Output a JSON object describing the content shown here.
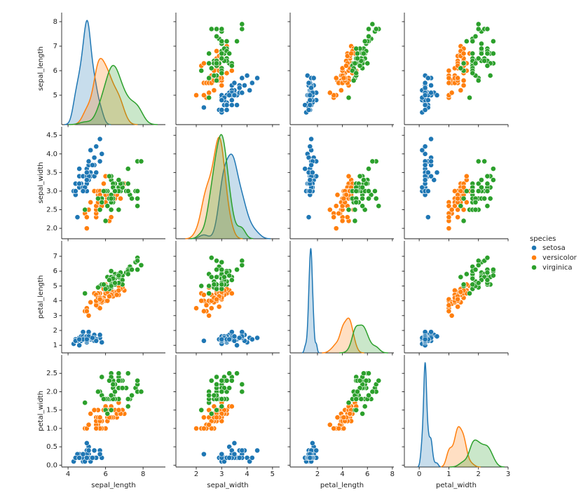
{
  "chart_data": {
    "type": "pairplot",
    "diag": "kde",
    "variables": [
      "sepal_length",
      "sepal_width",
      "petal_length",
      "petal_width"
    ],
    "axes": [
      {
        "xlim": [
          3.66,
          9.19
        ],
        "ylim": [
          3.8,
          8.37
        ],
        "xticks": [
          4,
          6,
          8
        ],
        "yticks": [
          5,
          6,
          7,
          8
        ]
      },
      {
        "xlim": [
          1.2,
          5.28
        ],
        "ylim": [
          1.72,
          4.73
        ],
        "xticks": [
          2,
          3,
          4,
          5
        ],
        "yticks": [
          {
            "value": 2,
            "label": "2.0"
          },
          {
            "value": 2.5,
            "label": "2.5"
          },
          {
            "value": 3,
            "label": "3.0"
          },
          {
            "value": 3.5,
            "label": "3.5"
          },
          {
            "value": 4,
            "label": "4.0"
          },
          {
            "value": 4.5,
            "label": "4.5"
          }
        ]
      },
      {
        "xlim": [
          -0.19,
          8.12
        ],
        "ylim": [
          0.49,
          8.04
        ],
        "xticks": [
          2,
          4,
          6,
          8
        ],
        "yticks": [
          1,
          2,
          3,
          4,
          5,
          6,
          7
        ]
      },
      {
        "xlim": [
          -0.5,
          3.0
        ],
        "ylim": [
          -0.05,
          3.0
        ],
        "xticks": [
          0,
          1,
          2,
          3
        ],
        "yticks": [
          {
            "value": 0,
            "label": "0.0"
          },
          {
            "value": 0.5,
            "label": "0.5"
          },
          {
            "value": 1,
            "label": "1.0"
          },
          {
            "value": 1.5,
            "label": "1.5"
          },
          {
            "value": 2,
            "label": "2.0"
          },
          {
            "value": 2.5,
            "label": "2.5"
          }
        ]
      }
    ],
    "legend_title": "species",
    "legend": "right",
    "series": [
      {
        "name": "setosa",
        "color": "#1f77b4",
        "values": [
          [
            5.1,
            4.9,
            4.7,
            4.6,
            5.0,
            5.4,
            4.6,
            5.0,
            4.4,
            4.9,
            5.4,
            4.8,
            4.8,
            4.3,
            5.8,
            5.7,
            5.4,
            5.1,
            5.7,
            5.1,
            5.4,
            5.1,
            4.6,
            5.1,
            4.8,
            5.0,
            5.0,
            5.2,
            5.2,
            4.7,
            4.8,
            5.4,
            5.2,
            5.5,
            4.9,
            5.0,
            5.5,
            4.9,
            4.4,
            5.1,
            5.0,
            4.5,
            4.4,
            5.0,
            5.1,
            4.8,
            5.1,
            4.6,
            5.3,
            5.0
          ],
          [
            3.5,
            3.0,
            3.2,
            3.1,
            3.6,
            3.9,
            3.4,
            3.4,
            2.9,
            3.1,
            3.7,
            3.4,
            3.0,
            3.0,
            4.0,
            4.4,
            3.9,
            3.5,
            3.8,
            3.8,
            3.4,
            3.7,
            3.6,
            3.3,
            3.4,
            3.0,
            3.4,
            3.5,
            3.4,
            3.2,
            3.1,
            3.4,
            4.1,
            4.2,
            3.1,
            3.2,
            3.5,
            3.1,
            3.0,
            3.4,
            3.5,
            2.3,
            3.2,
            3.5,
            3.8,
            3.0,
            3.8,
            3.2,
            3.7,
            3.3
          ],
          [
            1.4,
            1.4,
            1.3,
            1.5,
            1.4,
            1.7,
            1.4,
            1.5,
            1.4,
            1.5,
            1.5,
            1.6,
            1.4,
            1.1,
            1.2,
            1.5,
            1.3,
            1.4,
            1.7,
            1.5,
            1.7,
            1.5,
            1.0,
            1.7,
            1.9,
            1.6,
            1.6,
            1.5,
            1.4,
            1.6,
            1.6,
            1.5,
            1.5,
            1.4,
            1.5,
            1.2,
            1.3,
            1.5,
            1.3,
            1.5,
            1.3,
            1.3,
            1.3,
            1.6,
            1.9,
            1.4,
            1.6,
            1.4,
            1.5,
            1.4
          ],
          [
            0.2,
            0.2,
            0.2,
            0.2,
            0.2,
            0.4,
            0.3,
            0.2,
            0.2,
            0.1,
            0.2,
            0.2,
            0.1,
            0.1,
            0.2,
            0.4,
            0.4,
            0.3,
            0.3,
            0.3,
            0.2,
            0.4,
            0.2,
            0.5,
            0.2,
            0.2,
            0.4,
            0.2,
            0.2,
            0.2,
            0.2,
            0.4,
            0.1,
            0.2,
            0.1,
            0.2,
            0.2,
            0.1,
            0.2,
            0.2,
            0.3,
            0.3,
            0.2,
            0.6,
            0.4,
            0.3,
            0.2,
            0.2,
            0.2,
            0.2
          ]
        ]
      },
      {
        "name": "versicolor",
        "color": "#ff7f0e",
        "values": [
          [
            7.0,
            6.4,
            6.9,
            5.5,
            6.5,
            5.7,
            6.3,
            4.9,
            6.6,
            5.2,
            5.0,
            5.9,
            6.0,
            6.1,
            5.6,
            6.7,
            5.6,
            5.8,
            6.2,
            5.6,
            5.9,
            6.1,
            6.3,
            6.1,
            6.4,
            6.6,
            6.8,
            6.7,
            6.0,
            5.7,
            5.5,
            5.5,
            5.8,
            6.0,
            5.4,
            6.0,
            6.7,
            6.3,
            5.6,
            5.5,
            5.5,
            6.1,
            5.8,
            5.0,
            5.6,
            5.7,
            5.7,
            6.2,
            5.1,
            5.7
          ],
          [
            3.2,
            3.2,
            3.1,
            2.3,
            2.8,
            2.8,
            3.3,
            2.4,
            2.9,
            2.7,
            2.0,
            3.0,
            2.2,
            2.9,
            2.9,
            3.1,
            3.0,
            2.7,
            2.2,
            2.5,
            3.2,
            2.8,
            2.5,
            2.8,
            2.9,
            3.0,
            2.8,
            3.0,
            2.9,
            2.6,
            2.4,
            2.4,
            2.7,
            2.7,
            3.0,
            3.4,
            3.1,
            2.3,
            3.0,
            2.5,
            2.6,
            3.0,
            2.6,
            2.3,
            2.7,
            3.0,
            2.9,
            2.9,
            2.5,
            2.8
          ],
          [
            4.7,
            4.5,
            4.9,
            4.0,
            4.6,
            4.5,
            4.7,
            3.3,
            4.6,
            3.9,
            3.5,
            4.2,
            4.0,
            4.7,
            3.6,
            4.4,
            4.5,
            4.1,
            4.5,
            3.9,
            4.8,
            4.0,
            4.9,
            4.7,
            4.3,
            4.4,
            4.8,
            5.0,
            4.5,
            3.5,
            3.8,
            3.7,
            3.9,
            5.1,
            4.5,
            4.5,
            4.7,
            4.4,
            4.1,
            4.0,
            4.4,
            4.6,
            4.0,
            3.3,
            4.2,
            4.2,
            4.2,
            4.3,
            3.0,
            4.1
          ],
          [
            1.4,
            1.5,
            1.5,
            1.3,
            1.5,
            1.3,
            1.6,
            1.0,
            1.3,
            1.4,
            1.0,
            1.5,
            1.0,
            1.4,
            1.3,
            1.4,
            1.5,
            1.0,
            1.5,
            1.1,
            1.8,
            1.3,
            1.5,
            1.2,
            1.3,
            1.4,
            1.4,
            1.7,
            1.5,
            1.0,
            1.1,
            1.0,
            1.2,
            1.6,
            1.5,
            1.6,
            1.5,
            1.3,
            1.3,
            1.3,
            1.2,
            1.4,
            1.2,
            1.0,
            1.3,
            1.2,
            1.3,
            1.3,
            1.1,
            1.3
          ]
        ]
      },
      {
        "name": "virginica",
        "color": "#2ca02c",
        "values": [
          [
            6.3,
            5.8,
            7.1,
            6.3,
            6.5,
            7.6,
            4.9,
            7.3,
            6.7,
            7.2,
            6.5,
            6.4,
            6.8,
            5.7,
            5.8,
            6.4,
            6.5,
            7.7,
            7.7,
            6.0,
            6.9,
            5.6,
            7.7,
            6.3,
            6.7,
            7.2,
            6.2,
            6.1,
            6.4,
            7.2,
            7.4,
            7.9,
            6.4,
            6.3,
            6.1,
            7.7,
            6.3,
            6.4,
            6.0,
            6.9,
            6.7,
            6.9,
            5.8,
            6.8,
            6.7,
            6.7,
            6.3,
            6.5,
            6.2,
            5.9
          ],
          [
            3.3,
            2.7,
            3.0,
            2.9,
            3.0,
            3.0,
            2.5,
            2.9,
            2.5,
            3.6,
            3.2,
            2.7,
            3.0,
            2.5,
            2.8,
            3.2,
            3.0,
            3.8,
            2.6,
            2.2,
            3.2,
            2.8,
            2.8,
            2.7,
            3.3,
            3.2,
            2.8,
            3.0,
            2.8,
            3.0,
            2.8,
            3.8,
            2.8,
            2.8,
            2.6,
            3.0,
            3.4,
            3.1,
            3.0,
            3.1,
            3.1,
            3.1,
            2.7,
            3.2,
            3.3,
            3.0,
            2.5,
            3.0,
            3.4,
            3.0
          ],
          [
            6.0,
            5.1,
            5.9,
            5.6,
            5.8,
            6.6,
            4.5,
            6.3,
            5.8,
            6.1,
            5.1,
            5.3,
            5.5,
            5.0,
            5.1,
            5.3,
            5.5,
            6.7,
            6.9,
            5.0,
            5.7,
            4.9,
            6.7,
            4.9,
            5.7,
            6.0,
            4.8,
            4.9,
            5.6,
            5.8,
            6.1,
            6.4,
            5.6,
            5.1,
            5.6,
            6.1,
            5.6,
            5.5,
            4.8,
            5.4,
            5.6,
            5.1,
            5.1,
            5.9,
            5.7,
            5.2,
            5.0,
            5.2,
            5.4,
            5.1
          ],
          [
            2.5,
            1.9,
            2.1,
            1.8,
            2.2,
            2.1,
            1.7,
            1.8,
            1.8,
            2.5,
            2.0,
            1.9,
            2.1,
            2.0,
            2.4,
            2.3,
            1.8,
            2.2,
            2.3,
            1.5,
            2.3,
            2.0,
            2.0,
            1.8,
            2.1,
            1.8,
            1.8,
            1.8,
            2.1,
            1.6,
            1.9,
            2.0,
            2.2,
            1.5,
            1.4,
            2.3,
            2.4,
            1.8,
            1.8,
            2.1,
            2.4,
            2.3,
            1.9,
            2.3,
            2.5,
            2.3,
            1.9,
            2.0,
            2.3,
            1.8
          ]
        ]
      }
    ]
  }
}
